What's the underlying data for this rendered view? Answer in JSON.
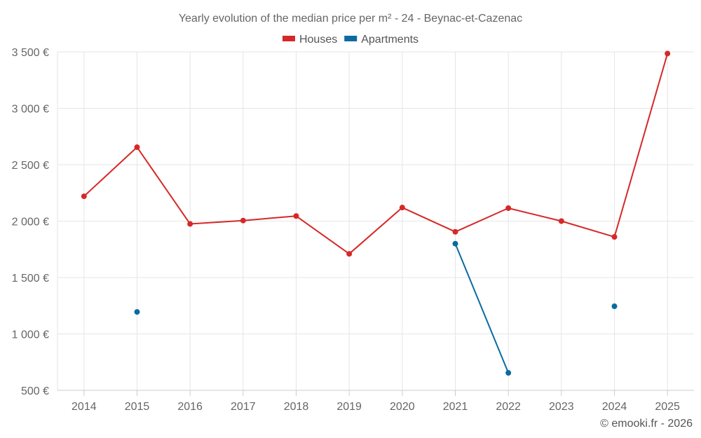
{
  "chart_data": {
    "type": "line",
    "title": "Yearly evolution of the median price per m² - 24 - Beynac-et-Cazenac",
    "x": [
      "2014",
      "2015",
      "2016",
      "2017",
      "2018",
      "2019",
      "2020",
      "2021",
      "2022",
      "2023",
      "2024",
      "2025"
    ],
    "ylim": [
      500,
      3500
    ],
    "yticks": [
      500,
      1000,
      1500,
      2000,
      2500,
      3000,
      3500
    ],
    "ytick_labels": [
      "500 €",
      "1 000 €",
      "1 500 €",
      "2 000 €",
      "2 500 €",
      "3 000 €",
      "3 500 €"
    ],
    "grid": true,
    "legend_position": "top",
    "series": [
      {
        "name": "Houses",
        "color": "#d62828",
        "values": [
          2220,
          2655,
          1975,
          2005,
          2045,
          1710,
          2120,
          1905,
          2115,
          2000,
          1860,
          3485
        ]
      },
      {
        "name": "Apartments",
        "color": "#0b6aa2",
        "values": [
          null,
          1195,
          null,
          null,
          null,
          null,
          null,
          1800,
          655,
          null,
          1245,
          null
        ]
      }
    ]
  },
  "credit": "© emooki.fr - 2026"
}
